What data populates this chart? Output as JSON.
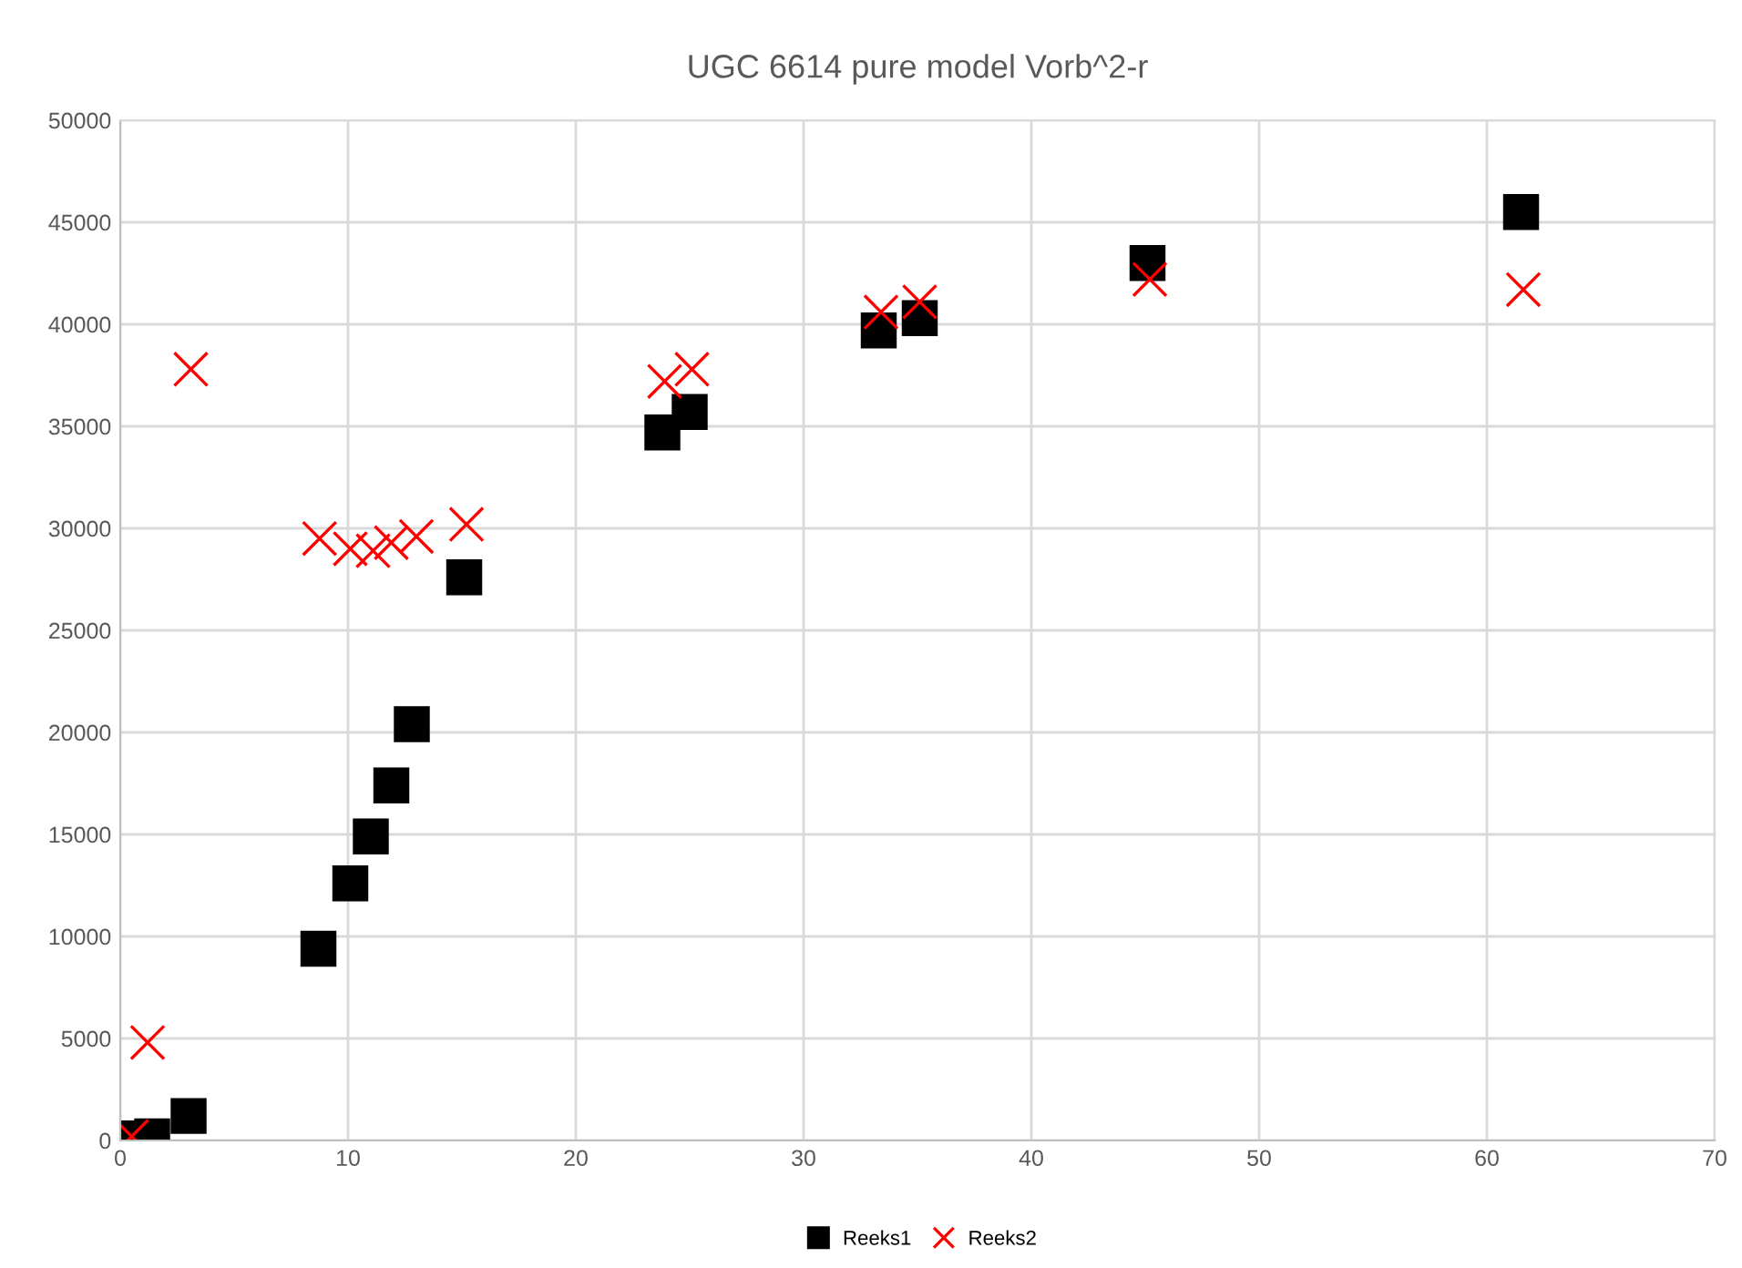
{
  "chart_data": {
    "type": "scatter",
    "title": "UGC 6614 pure model Vorb^2-r",
    "series": [
      {
        "name": "Reeks1",
        "color": "#000000",
        "marker": "square",
        "x": [
          0.4,
          1.4,
          3.0,
          8.7,
          10.1,
          11.0,
          11.9,
          12.8,
          15.1,
          23.8,
          25.0,
          33.3,
          35.1,
          45.1,
          61.5
        ],
        "values": [
          100,
          200,
          1200,
          9400,
          12600,
          14900,
          17400,
          20400,
          27600,
          34700,
          35700,
          39700,
          40300,
          43000,
          45500
        ]
      },
      {
        "name": "Reeks2",
        "color": "#ff0000",
        "marker": "cross",
        "x": [
          0.5,
          1.2,
          3.1,
          8.75,
          10.1,
          11.1,
          11.9,
          13.0,
          15.2,
          23.9,
          25.1,
          33.4,
          35.1,
          45.2,
          61.6
        ],
        "values": [
          200,
          4800,
          37800,
          29500,
          29000,
          28900,
          29300,
          29600,
          30200,
          37200,
          37800,
          40600,
          41100,
          42200,
          41700
        ]
      }
    ],
    "xlim": [
      0,
      70
    ],
    "xticks": [
      0,
      10,
      20,
      30,
      40,
      50,
      60,
      70
    ],
    "ylim": [
      0,
      50000
    ],
    "yticks": [
      0,
      5000,
      10000,
      15000,
      20000,
      25000,
      30000,
      35000,
      40000,
      45000,
      50000
    ],
    "grid": true,
    "legend": "bottom"
  }
}
